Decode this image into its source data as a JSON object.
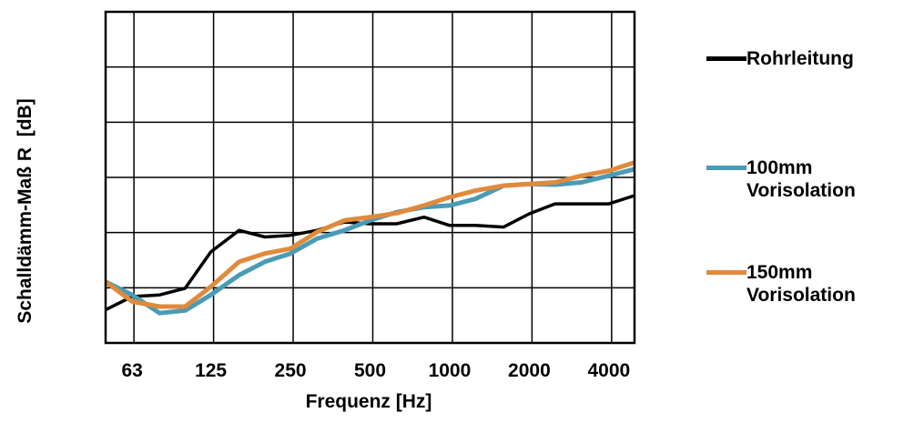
{
  "chart_data": {
    "type": "line",
    "title": "",
    "xlabel": "Frequenz [Hz]",
    "ylabel": "Schalldämm-Maß R  [dB]",
    "x": [
      50,
      63,
      80,
      100,
      125,
      160,
      200,
      250,
      315,
      400,
      500,
      630,
      800,
      1000,
      1250,
      1600,
      2000,
      2500,
      3150,
      4000,
      5000
    ],
    "x_tick_labels": [
      "63",
      "125",
      "250",
      "500",
      "1000",
      "2000",
      "4000"
    ],
    "x_ticks": [
      63,
      125,
      250,
      500,
      1000,
      2000,
      4000
    ],
    "x_scale": "log",
    "y_gridlines": 5,
    "grid": true,
    "legend_position": "right",
    "series": [
      {
        "name": "Rohrleitung",
        "color": "#000000",
        "values": [
          0.1,
          0.14,
          0.145,
          0.165,
          0.275,
          0.34,
          0.32,
          0.325,
          0.34,
          0.365,
          0.36,
          0.36,
          0.38,
          0.355,
          0.355,
          0.35,
          0.39,
          0.42,
          0.42,
          0.42,
          0.445
        ]
      },
      {
        "name": "100mm Vorisolation",
        "color": "#4a9bb5",
        "values": [
          0.185,
          0.145,
          0.09,
          0.098,
          0.145,
          0.205,
          0.245,
          0.27,
          0.315,
          0.34,
          0.37,
          0.395,
          0.41,
          0.415,
          0.435,
          0.475,
          0.48,
          0.478,
          0.485,
          0.505,
          0.525
        ]
      },
      {
        "name": "150mm Vorisolation",
        "color": "#e08a3c",
        "values": [
          0.185,
          0.125,
          0.11,
          0.11,
          0.17,
          0.245,
          0.27,
          0.285,
          0.335,
          0.37,
          0.38,
          0.392,
          0.415,
          0.44,
          0.46,
          0.475,
          0.48,
          0.485,
          0.505,
          0.52,
          0.545
        ]
      }
    ]
  },
  "legend": [
    {
      "label": "Rohrleitung",
      "color": "#000000"
    },
    {
      "label": "100mm\nVorisolation",
      "color": "#4a9bb5"
    },
    {
      "label": "150mm\nVorisolation",
      "color": "#e08a3c"
    }
  ]
}
